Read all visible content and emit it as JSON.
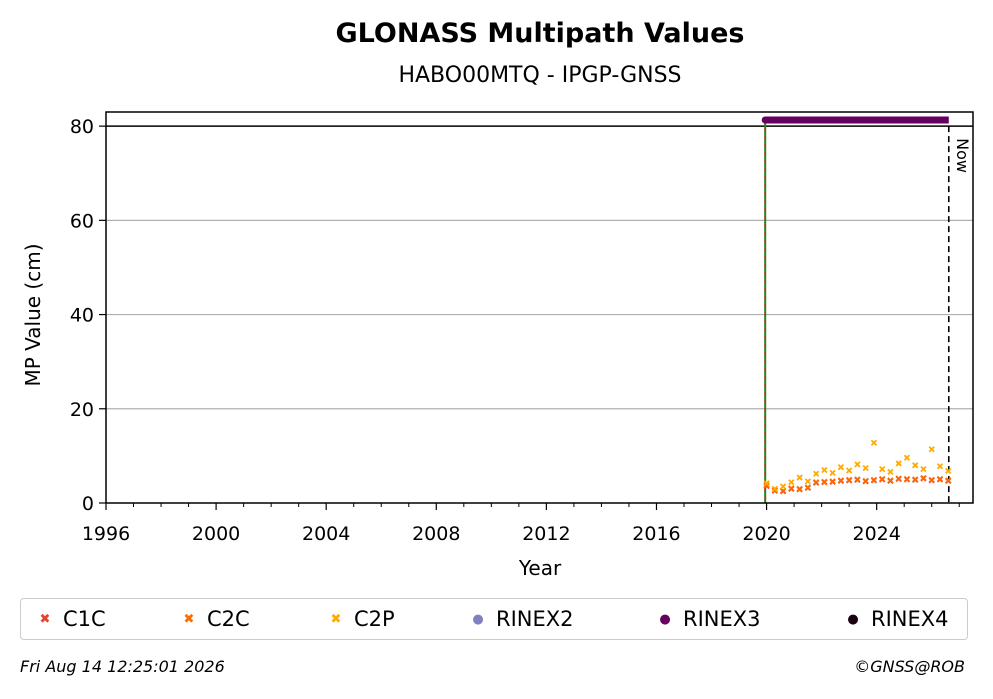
{
  "chart_data": {
    "type": "scatter",
    "title": "GLONASS Multipath Values",
    "subtitle": "HABO00MTQ - IPGP-GNSS",
    "xlabel": "Year",
    "ylabel": "MP Value (cm)",
    "xlim": [
      1996,
      2027.5
    ],
    "ylim": [
      0,
      83
    ],
    "x_ticks": [
      1996,
      2000,
      2004,
      2008,
      2012,
      2016,
      2020,
      2024
    ],
    "y_ticks": [
      0,
      20,
      40,
      60,
      80
    ],
    "grid": "horizontal",
    "now_label": "Now",
    "now_x": 2026.62,
    "rinex_start_x": 2019.95,
    "series": [
      {
        "name": "C1C",
        "color": "#e8412c",
        "points": [
          [
            2020.0,
            3.6
          ],
          [
            2020.3,
            2.6
          ],
          [
            2020.6,
            2.5
          ],
          [
            2020.9,
            3.0
          ],
          [
            2021.2,
            2.9
          ],
          [
            2021.5,
            3.2
          ],
          [
            2021.8,
            4.3
          ],
          [
            2022.1,
            4.4
          ],
          [
            2022.4,
            4.5
          ],
          [
            2022.7,
            4.7
          ],
          [
            2023.0,
            4.8
          ],
          [
            2023.3,
            4.9
          ],
          [
            2023.6,
            4.6
          ],
          [
            2023.9,
            4.8
          ],
          [
            2024.2,
            5.0
          ],
          [
            2024.5,
            4.7
          ],
          [
            2024.8,
            5.1
          ],
          [
            2025.1,
            5.0
          ],
          [
            2025.4,
            4.9
          ],
          [
            2025.7,
            5.2
          ],
          [
            2026.0,
            4.8
          ],
          [
            2026.3,
            5.0
          ],
          [
            2026.6,
            4.7
          ]
        ]
      },
      {
        "name": "C2C",
        "color": "#ff6a00",
        "points": [
          [
            2020.0,
            3.8
          ],
          [
            2020.3,
            2.7
          ],
          [
            2020.6,
            2.6
          ],
          [
            2020.9,
            3.1
          ],
          [
            2021.2,
            3.0
          ],
          [
            2021.5,
            3.3
          ],
          [
            2021.8,
            4.4
          ],
          [
            2022.1,
            4.5
          ],
          [
            2022.4,
            4.6
          ],
          [
            2022.7,
            4.8
          ],
          [
            2023.0,
            4.9
          ],
          [
            2023.3,
            5.0
          ],
          [
            2023.6,
            4.7
          ],
          [
            2023.9,
            4.9
          ],
          [
            2024.2,
            5.1
          ],
          [
            2024.5,
            4.8
          ],
          [
            2024.8,
            5.2
          ],
          [
            2025.1,
            5.1
          ],
          [
            2025.4,
            5.0
          ],
          [
            2025.7,
            5.3
          ],
          [
            2026.0,
            4.9
          ],
          [
            2026.3,
            5.1
          ],
          [
            2026.6,
            4.8
          ]
        ]
      },
      {
        "name": "C2P",
        "color": "#ffaa00",
        "points": [
          [
            2020.0,
            4.2
          ],
          [
            2020.3,
            3.0
          ],
          [
            2020.6,
            3.5
          ],
          [
            2020.9,
            4.4
          ],
          [
            2021.2,
            5.4
          ],
          [
            2021.5,
            4.6
          ],
          [
            2021.8,
            6.2
          ],
          [
            2022.1,
            7.0
          ],
          [
            2022.4,
            6.4
          ],
          [
            2022.7,
            7.6
          ],
          [
            2023.0,
            6.9
          ],
          [
            2023.3,
            8.2
          ],
          [
            2023.6,
            7.4
          ],
          [
            2023.9,
            12.8
          ],
          [
            2024.2,
            7.2
          ],
          [
            2024.5,
            6.6
          ],
          [
            2024.8,
            8.4
          ],
          [
            2025.1,
            9.6
          ],
          [
            2025.4,
            8.0
          ],
          [
            2025.7,
            7.2
          ],
          [
            2026.0,
            11.4
          ],
          [
            2026.3,
            7.8
          ],
          [
            2026.6,
            6.8
          ]
        ]
      },
      {
        "name": "RINEX2",
        "color": "#8080c0",
        "points": []
      },
      {
        "name": "RINEX3",
        "color": "#66005f",
        "y": 81.3,
        "x_range": [
          2019.95,
          2026.62
        ]
      },
      {
        "name": "RINEX4",
        "color": "#1a0010",
        "points": []
      }
    ]
  },
  "footer": {
    "timestamp": "Fri Aug 14 12:25:01 2026",
    "credit": "©GNSS@ROB"
  }
}
